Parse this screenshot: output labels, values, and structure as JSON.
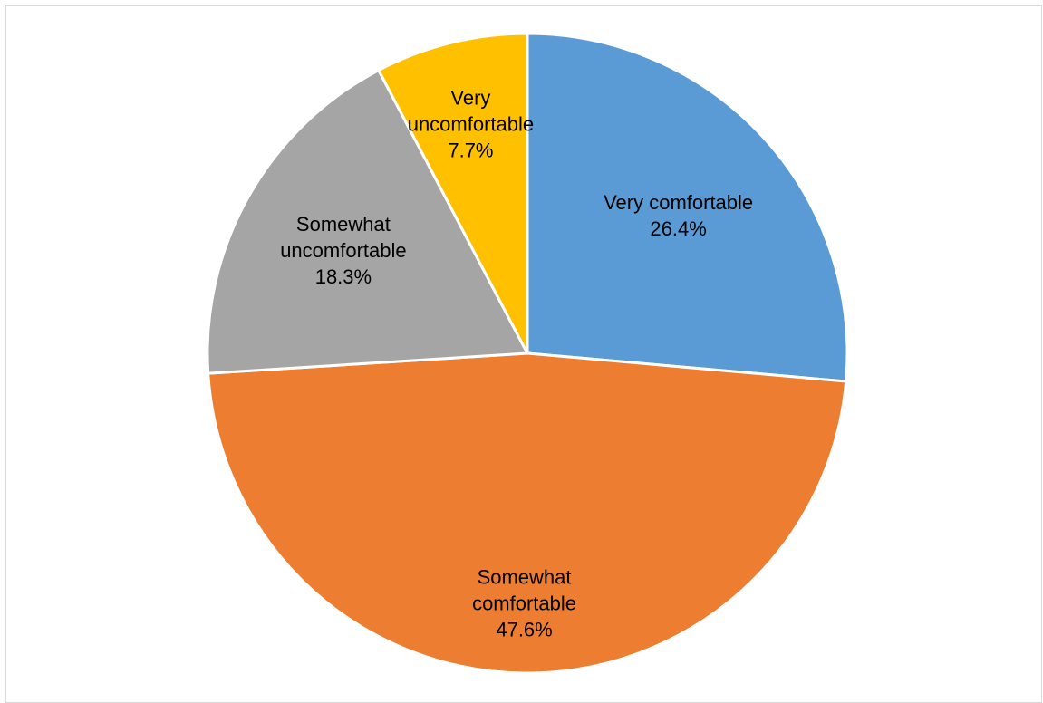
{
  "chart_data": {
    "type": "pie",
    "title": "",
    "start_angle_deg": 0,
    "direction": "clockwise",
    "slices": [
      {
        "label": [
          "Very comfortable"
        ],
        "value": 26.4,
        "value_text": "26.4%",
        "color": "#5B9BD5"
      },
      {
        "label": [
          "Somewhat",
          "comfortable"
        ],
        "value": 47.6,
        "value_text": "47.6%",
        "color": "#ED7D31"
      },
      {
        "label": [
          "Somewhat",
          "uncomfortable"
        ],
        "value": 18.3,
        "value_text": "18.3%",
        "color": "#A5A5A5"
      },
      {
        "label": [
          "Very",
          "uncomfortable"
        ],
        "value": 7.7,
        "value_text": "7.7%",
        "color": "#FFC000"
      }
    ]
  }
}
